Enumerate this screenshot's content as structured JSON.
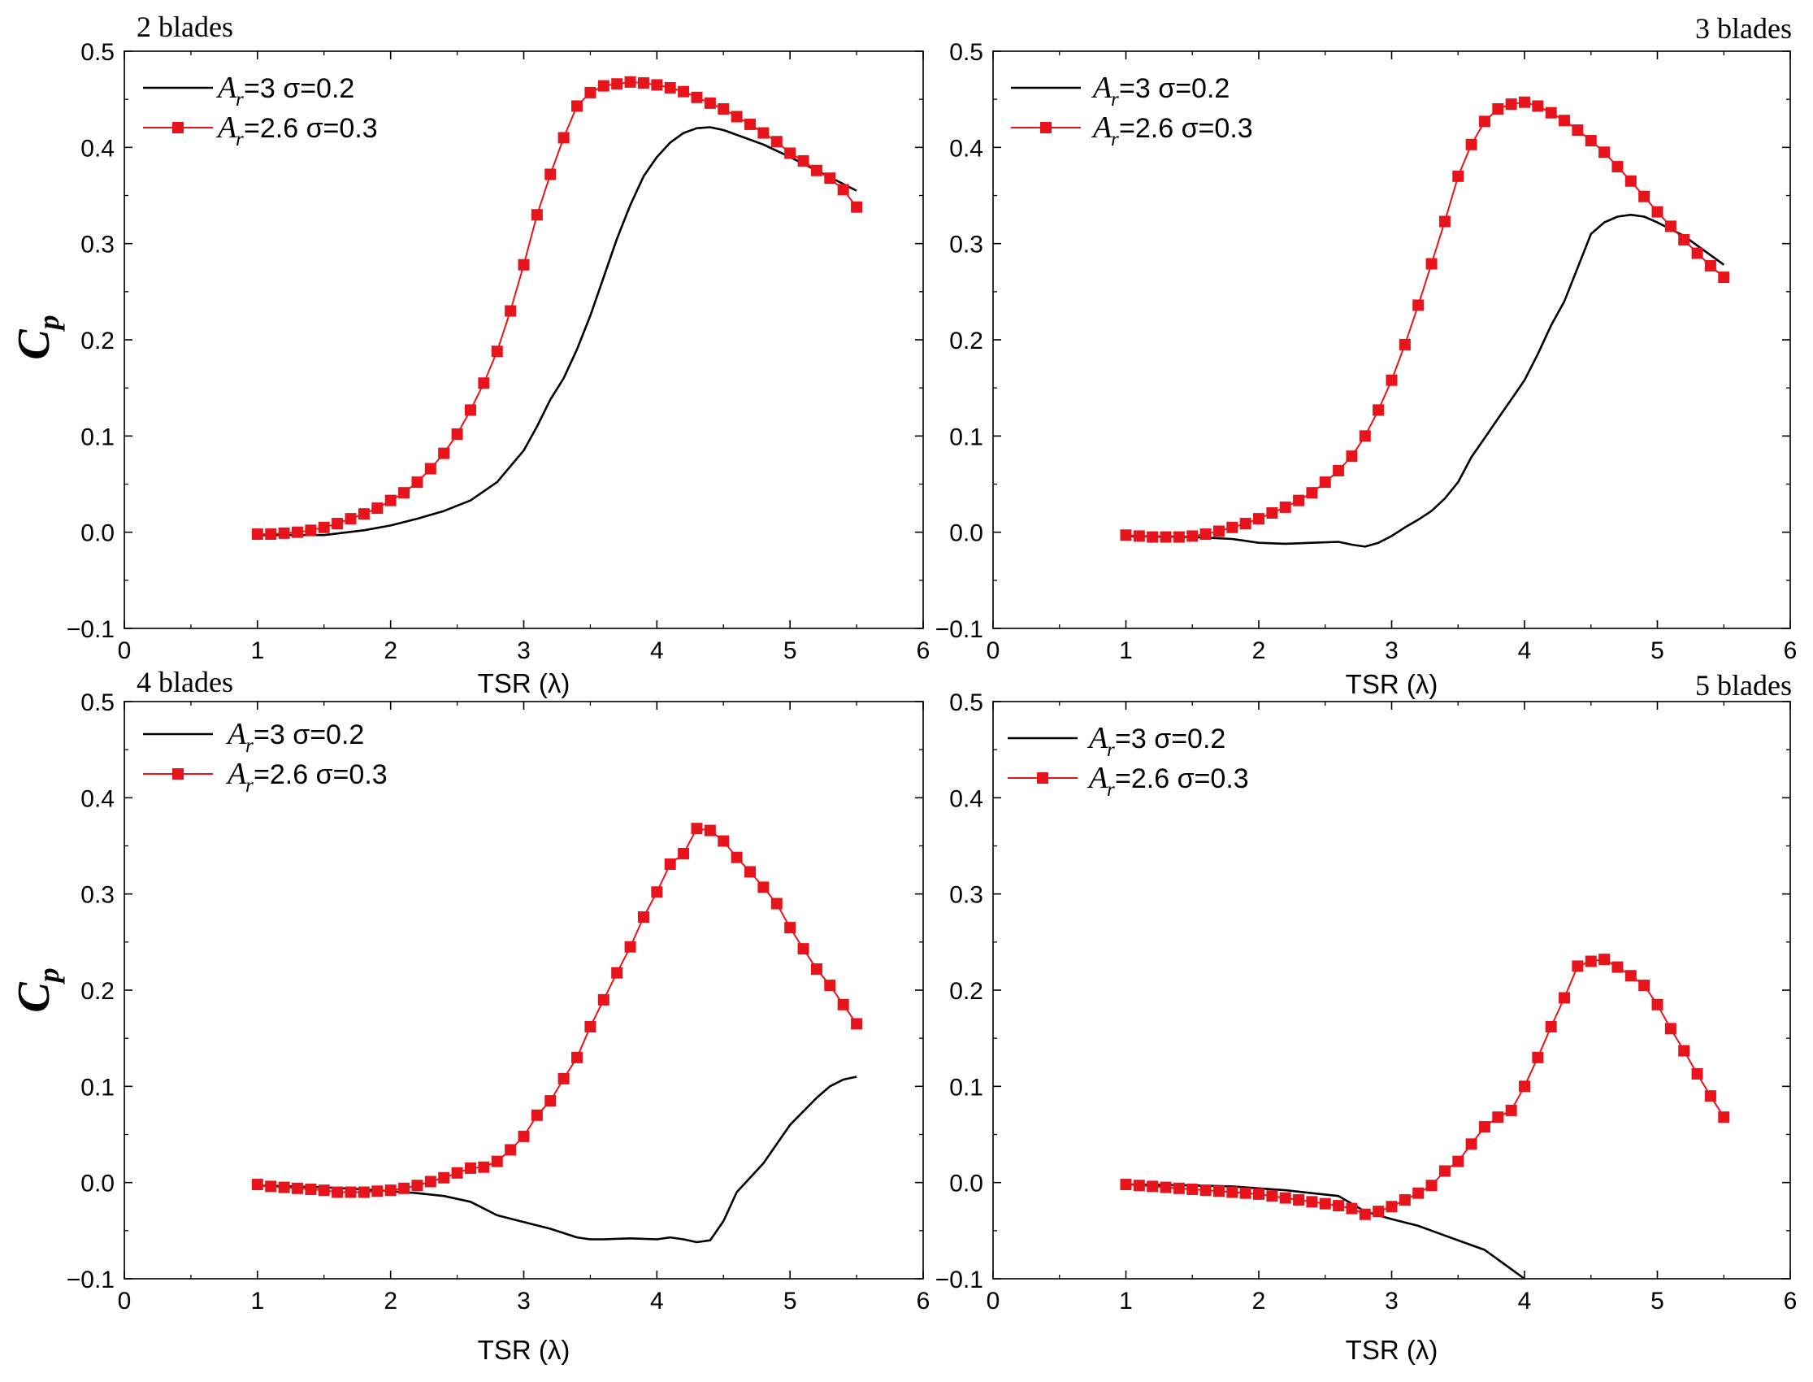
{
  "figure": {
    "ylabel_main": "C",
    "ylabel_sub": "p",
    "colors": {
      "series1": "#000000",
      "series2": "#e8141c",
      "marker": "#e8141c",
      "axis": "#000000"
    }
  },
  "chart_data": [
    {
      "type": "line",
      "title": "2 blades",
      "title_align": "left",
      "xlabel": "TSR (λ)",
      "xlim": [
        0,
        6
      ],
      "ylim": [
        -0.1,
        0.5
      ],
      "xticks": [
        "0",
        "1",
        "2",
        "3",
        "4",
        "5",
        "6"
      ],
      "yticks": [
        "−0.1",
        "0.0",
        "0.1",
        "0.2",
        "0.3",
        "0.4",
        "0.5"
      ],
      "legend": {
        "entries": [
          {
            "sym": "A",
            "sub": "r",
            "text": " =3 σ=0.2"
          },
          {
            "sym": "A",
            "sub": "r",
            "text": " =2.6 σ=0.3"
          }
        ]
      },
      "series": [
        {
          "name": "A_r=3 σ=0.2",
          "color": "#000000",
          "marker": "none",
          "x": [
            1.0,
            1.5,
            1.8,
            2.0,
            2.2,
            2.4,
            2.6,
            2.8,
            3.0,
            3.1,
            3.2,
            3.3,
            3.4,
            3.5,
            3.6,
            3.7,
            3.8,
            3.9,
            4.0,
            4.1,
            4.2,
            4.3,
            4.4,
            4.5,
            4.6,
            4.8,
            5.0,
            5.2,
            5.5
          ],
          "y": [
            -0.003,
            -0.003,
            0.002,
            0.007,
            0.014,
            0.022,
            0.033,
            0.052,
            0.085,
            0.11,
            0.138,
            0.16,
            0.19,
            0.225,
            0.265,
            0.305,
            0.34,
            0.37,
            0.39,
            0.405,
            0.415,
            0.42,
            0.421,
            0.418,
            0.413,
            0.403,
            0.39,
            0.376,
            0.355
          ]
        },
        {
          "name": "A_r=2.6 σ=0.3",
          "color": "#e8141c",
          "marker": "square",
          "x": [
            1.0,
            1.1,
            1.2,
            1.3,
            1.4,
            1.5,
            1.6,
            1.7,
            1.8,
            1.9,
            2.0,
            2.1,
            2.2,
            2.3,
            2.4,
            2.5,
            2.6,
            2.7,
            2.8,
            2.9,
            3.0,
            3.1,
            3.2,
            3.3,
            3.4,
            3.5,
            3.6,
            3.7,
            3.8,
            3.9,
            4.0,
            4.1,
            4.2,
            4.3,
            4.4,
            4.5,
            4.6,
            4.7,
            4.8,
            4.9,
            5.0,
            5.1,
            5.2,
            5.3,
            5.4,
            5.5
          ],
          "y": [
            -0.002,
            -0.002,
            -0.001,
            0.0,
            0.002,
            0.005,
            0.009,
            0.014,
            0.019,
            0.025,
            0.033,
            0.041,
            0.052,
            0.066,
            0.082,
            0.102,
            0.127,
            0.155,
            0.188,
            0.23,
            0.278,
            0.33,
            0.372,
            0.41,
            0.443,
            0.457,
            0.464,
            0.466,
            0.468,
            0.467,
            0.465,
            0.462,
            0.458,
            0.452,
            0.446,
            0.44,
            0.432,
            0.424,
            0.415,
            0.406,
            0.394,
            0.386,
            0.376,
            0.368,
            0.356,
            0.338
          ]
        }
      ]
    },
    {
      "type": "line",
      "title": "3 blades",
      "title_align": "right",
      "xlabel": "TSR (λ)",
      "xlim": [
        0,
        6
      ],
      "ylim": [
        -0.1,
        0.5
      ],
      "xticks": [
        "0",
        "1",
        "2",
        "3",
        "4",
        "5",
        "6"
      ],
      "yticks": [
        "−0.1",
        "0.0",
        "0.1",
        "0.2",
        "0.3",
        "0.4",
        "0.5"
      ],
      "legend": {
        "entries": [
          {
            "sym": "A",
            "sub": "r",
            "text": "=3 σ=0.2"
          },
          {
            "sym": "A",
            "sub": "r",
            "text": "=2.6 σ=0.3"
          }
        ]
      },
      "series": [
        {
          "name": "A_r=3 σ=0.2",
          "color": "#000000",
          "marker": "none",
          "x": [
            1.0,
            1.5,
            1.8,
            2.0,
            2.2,
            2.4,
            2.6,
            2.7,
            2.8,
            2.9,
            3.0,
            3.1,
            3.2,
            3.3,
            3.4,
            3.5,
            3.6,
            3.7,
            3.8,
            3.9,
            4.0,
            4.1,
            4.2,
            4.3,
            4.4,
            4.5,
            4.6,
            4.7,
            4.8,
            4.9,
            5.0,
            5.2,
            5.5
          ],
          "y": [
            -0.004,
            -0.005,
            -0.007,
            -0.011,
            -0.012,
            -0.011,
            -0.01,
            -0.013,
            -0.015,
            -0.011,
            -0.004,
            0.005,
            0.013,
            0.022,
            0.035,
            0.052,
            0.078,
            0.098,
            0.118,
            0.138,
            0.158,
            0.185,
            0.215,
            0.24,
            0.275,
            0.31,
            0.322,
            0.328,
            0.33,
            0.328,
            0.322,
            0.308,
            0.278
          ]
        },
        {
          "name": "A_r=2.6 σ=0.3",
          "color": "#e8141c",
          "marker": "square",
          "x": [
            1.0,
            1.1,
            1.2,
            1.3,
            1.4,
            1.5,
            1.6,
            1.7,
            1.8,
            1.9,
            2.0,
            2.1,
            2.2,
            2.3,
            2.4,
            2.5,
            2.6,
            2.7,
            2.8,
            2.9,
            3.0,
            3.1,
            3.2,
            3.3,
            3.4,
            3.5,
            3.6,
            3.7,
            3.8,
            3.9,
            4.0,
            4.1,
            4.2,
            4.3,
            4.4,
            4.5,
            4.6,
            4.7,
            4.8,
            4.9,
            5.0,
            5.1,
            5.2,
            5.3,
            5.4,
            5.5
          ],
          "y": [
            -0.003,
            -0.004,
            -0.005,
            -0.005,
            -0.005,
            -0.004,
            -0.002,
            0.001,
            0.005,
            0.009,
            0.014,
            0.02,
            0.026,
            0.033,
            0.041,
            0.052,
            0.064,
            0.079,
            0.1,
            0.127,
            0.158,
            0.195,
            0.236,
            0.279,
            0.323,
            0.37,
            0.403,
            0.427,
            0.44,
            0.445,
            0.447,
            0.443,
            0.436,
            0.428,
            0.418,
            0.407,
            0.395,
            0.38,
            0.365,
            0.349,
            0.333,
            0.318,
            0.304,
            0.29,
            0.277,
            0.265
          ]
        }
      ]
    },
    {
      "type": "line",
      "title": "4 blades",
      "title_align": "left",
      "xlabel": "TSR (λ)",
      "xlim": [
        0,
        6
      ],
      "ylim": [
        -0.1,
        0.5
      ],
      "xticks": [
        "0",
        "1",
        "2",
        "3",
        "4",
        "5",
        "6"
      ],
      "yticks": [
        "−0.1",
        "0.0",
        "0.1",
        "0.2",
        "0.3",
        "0.4",
        "0.5"
      ],
      "legend": {
        "entries": [
          {
            "sym": "A",
            "sub": "r",
            "text": "=3 σ=0.2"
          },
          {
            "sym": "A",
            "sub": "r",
            "text": "=2.6 σ=0.3"
          }
        ]
      },
      "series": [
        {
          "name": "A_r=3 σ=0.2",
          "color": "#000000",
          "marker": "none",
          "x": [
            1.0,
            1.5,
            1.8,
            2.0,
            2.2,
            2.4,
            2.6,
            2.8,
            3.0,
            3.2,
            3.4,
            3.5,
            3.6,
            3.8,
            4.0,
            4.1,
            4.2,
            4.3,
            4.4,
            4.5,
            4.6,
            4.7,
            4.8,
            5.0,
            5.2,
            5.3,
            5.4,
            5.5
          ],
          "y": [
            -0.003,
            -0.005,
            -0.007,
            -0.009,
            -0.011,
            -0.014,
            -0.02,
            -0.034,
            -0.041,
            -0.048,
            -0.057,
            -0.059,
            -0.059,
            -0.058,
            -0.059,
            -0.057,
            -0.059,
            -0.062,
            -0.06,
            -0.04,
            -0.01,
            0.005,
            0.02,
            0.06,
            0.088,
            0.1,
            0.107,
            0.11
          ]
        },
        {
          "name": "A_r=2.6 σ=0.3",
          "color": "#e8141c",
          "marker": "square",
          "x": [
            1.0,
            1.1,
            1.2,
            1.3,
            1.4,
            1.5,
            1.6,
            1.7,
            1.8,
            1.9,
            2.0,
            2.1,
            2.2,
            2.3,
            2.4,
            2.5,
            2.6,
            2.7,
            2.8,
            2.9,
            3.0,
            3.1,
            3.2,
            3.3,
            3.4,
            3.5,
            3.6,
            3.7,
            3.8,
            3.9,
            4.0,
            4.1,
            4.2,
            4.3,
            4.4,
            4.5,
            4.6,
            4.7,
            4.8,
            4.9,
            5.0,
            5.1,
            5.2,
            5.3,
            5.4,
            5.5
          ],
          "y": [
            -0.002,
            -0.004,
            -0.005,
            -0.006,
            -0.007,
            -0.008,
            -0.01,
            -0.01,
            -0.01,
            -0.009,
            -0.008,
            -0.006,
            -0.003,
            0.001,
            0.005,
            0.01,
            0.015,
            0.016,
            0.022,
            0.034,
            0.048,
            0.07,
            0.085,
            0.108,
            0.13,
            0.162,
            0.19,
            0.218,
            0.245,
            0.276,
            0.302,
            0.331,
            0.342,
            0.368,
            0.366,
            0.355,
            0.338,
            0.323,
            0.307,
            0.29,
            0.265,
            0.243,
            0.222,
            0.205,
            0.185,
            0.165
          ]
        }
      ]
    },
    {
      "type": "line",
      "title": "5 blades",
      "title_align": "right",
      "xlabel": "TSR (λ)",
      "xlim": [
        0,
        6
      ],
      "ylim": [
        -0.1,
        0.5
      ],
      "xticks": [
        "0",
        "1",
        "2",
        "3",
        "4",
        "5",
        "6"
      ],
      "yticks": [
        "−0.1",
        "0.0",
        "0.1",
        "0.2",
        "0.3",
        "0.4",
        "0.5"
      ],
      "legend": {
        "entries": [
          {
            "sym": "A",
            "sub": "r",
            "text": "=3 σ=0.2"
          },
          {
            "sym": "A",
            "sub": "r",
            "text": "=2.6 σ=0.3"
          }
        ]
      },
      "series": [
        {
          "name": "A_r=3 σ=0.2",
          "color": "#000000",
          "marker": "none",
          "x": [
            1.0,
            1.5,
            1.8,
            2.0,
            2.2,
            2.4,
            2.6,
            2.7,
            2.8,
            3.0,
            3.2,
            3.4,
            3.6,
            3.7,
            3.8,
            3.9,
            4.0
          ],
          "y": [
            -0.002,
            -0.003,
            -0.004,
            -0.006,
            -0.008,
            -0.011,
            -0.014,
            -0.022,
            -0.03,
            -0.038,
            -0.045,
            -0.055,
            -0.065,
            -0.07,
            -0.08,
            -0.09,
            -0.1
          ]
        },
        {
          "name": "A_r=2.6 σ=0.3",
          "color": "#e8141c",
          "marker": "square",
          "x": [
            1.0,
            1.1,
            1.2,
            1.3,
            1.4,
            1.5,
            1.6,
            1.7,
            1.8,
            1.9,
            2.0,
            2.1,
            2.2,
            2.3,
            2.4,
            2.5,
            2.6,
            2.7,
            2.8,
            2.9,
            3.0,
            3.1,
            3.2,
            3.3,
            3.4,
            3.5,
            3.6,
            3.7,
            3.8,
            3.9,
            4.0,
            4.1,
            4.2,
            4.3,
            4.4,
            4.5,
            4.6,
            4.7,
            4.8,
            4.9,
            5.0,
            5.1,
            5.2,
            5.3,
            5.4,
            5.5
          ],
          "y": [
            -0.002,
            -0.003,
            -0.004,
            -0.005,
            -0.006,
            -0.007,
            -0.008,
            -0.009,
            -0.01,
            -0.011,
            -0.012,
            -0.014,
            -0.016,
            -0.018,
            -0.02,
            -0.022,
            -0.024,
            -0.027,
            -0.033,
            -0.03,
            -0.025,
            -0.018,
            -0.011,
            -0.003,
            0.012,
            0.022,
            0.04,
            0.058,
            0.068,
            0.075,
            0.1,
            0.13,
            0.162,
            0.192,
            0.225,
            0.23,
            0.232,
            0.224,
            0.215,
            0.205,
            0.185,
            0.16,
            0.137,
            0.113,
            0.09,
            0.068
          ]
        }
      ]
    }
  ]
}
